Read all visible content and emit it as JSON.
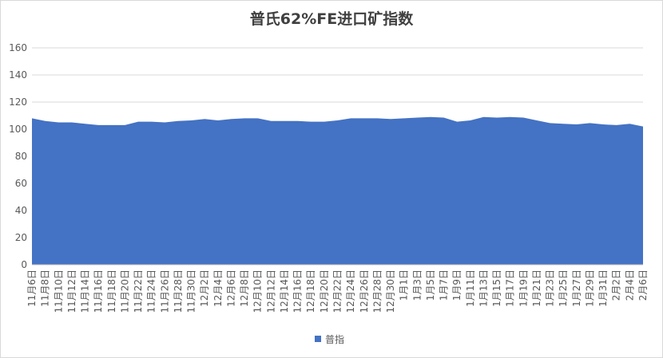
{
  "chart_data": {
    "type": "area",
    "title": "普氏62%FE进口矿指数",
    "categories": [
      "11月6日",
      "11月8日",
      "11月10日",
      "11月12日",
      "11月14日",
      "11月16日",
      "11月18日",
      "11月20日",
      "11月22日",
      "11月24日",
      "11月26日",
      "11月28日",
      "11月30日",
      "12月2日",
      "12月4日",
      "12月6日",
      "12月8日",
      "12月10日",
      "12月12日",
      "12月14日",
      "12月16日",
      "12月18日",
      "12月20日",
      "12月22日",
      "12月24日",
      "12月26日",
      "12月28日",
      "12月30日",
      "1月1日",
      "1月3日",
      "1月5日",
      "1月7日",
      "1月9日",
      "1月11日",
      "1月13日",
      "1月15日",
      "1月17日",
      "1月19日",
      "1月21日",
      "1月23日",
      "1月25日",
      "1月27日",
      "1月29日",
      "1月31日",
      "2月2日",
      "2月4日",
      "2月6日"
    ],
    "series": [
      {
        "name": "普指",
        "color": "#4472c4",
        "values": [
          108,
          106,
          105,
          105,
          104,
          103,
          103,
          103,
          105.5,
          105.5,
          105,
          106,
          106.5,
          107.5,
          106.5,
          107.5,
          108,
          108,
          106,
          106,
          106,
          105.5,
          105.5,
          106.5,
          108,
          108,
          108,
          107.5,
          108,
          108.5,
          109,
          108.5,
          105.5,
          106.5,
          109,
          108.5,
          109,
          108.5,
          106.5,
          104.5,
          104,
          103.5,
          104.5,
          103.5,
          103,
          104,
          102
        ]
      }
    ],
    "ylim": [
      0,
      160
    ],
    "yticks": [
      0,
      20,
      40,
      60,
      80,
      100,
      120,
      140,
      160
    ],
    "grid": true,
    "legend": "bottom"
  }
}
